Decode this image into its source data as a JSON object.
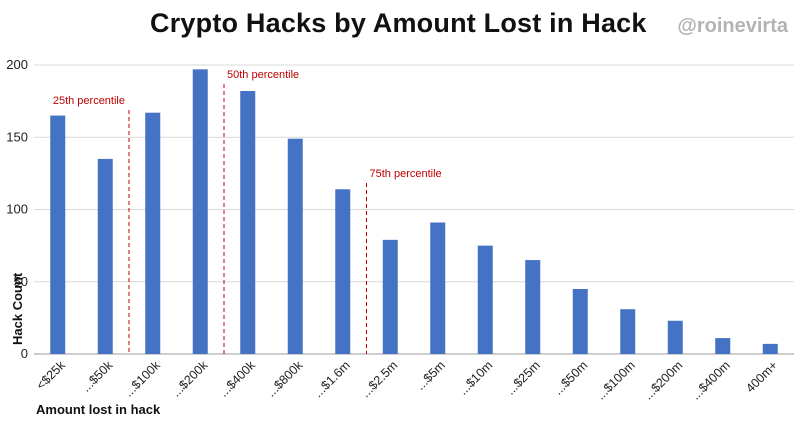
{
  "header": {
    "title": "Crypto Hacks by Amount Lost in Hack",
    "watermark": "@roinevirta"
  },
  "chart_data": {
    "type": "bar",
    "title": "Crypto Hacks by Amount Lost in Hack",
    "xlabel": "Amount lost in hack",
    "ylabel": "Hack Count",
    "categories": [
      "<$25k",
      "...$50k",
      "...$100k",
      "...$200k",
      "...$400k",
      "...$800k",
      "...$1.6m",
      "...$2.5m",
      "...$5m",
      "...$10m",
      "...$25m",
      "...$50m",
      "...$100m",
      "...$200m",
      "...$400m",
      "400m+"
    ],
    "values": [
      165,
      135,
      167,
      197,
      182,
      149,
      114,
      79,
      91,
      75,
      65,
      45,
      31,
      23,
      11,
      7
    ],
    "ylim": [
      0,
      200
    ],
    "yticks": [
      0,
      50,
      100,
      150,
      200
    ],
    "grid": true,
    "bar_color": "#4472c4",
    "annotations": [
      {
        "label": "25th percentile",
        "between": [
          1,
          2
        ]
      },
      {
        "label": "50th percentile",
        "between": [
          3,
          4
        ]
      },
      {
        "label": "75th percentile",
        "between": [
          6,
          7
        ]
      }
    ],
    "annotation_color": "#c00000"
  }
}
